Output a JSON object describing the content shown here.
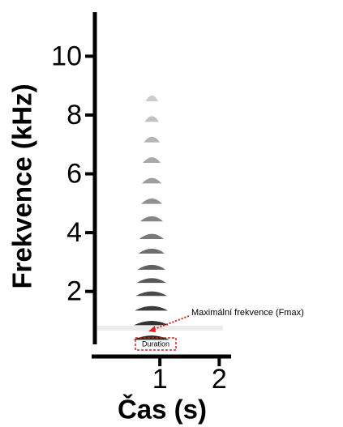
{
  "chart_data": {
    "type": "spectrogram",
    "ylabel": "Frekvence (kHz)",
    "xlabel": "Čas (s)",
    "ylim": [
      0.2,
      11.5
    ],
    "yticks": [
      2,
      4,
      6,
      8,
      10
    ],
    "xlim": [
      -0.15,
      2.2
    ],
    "xticks": [
      1,
      2
    ],
    "time_range": [
      0.6,
      1.25
    ],
    "harmonics": [
      0.45,
      0.95,
      1.45,
      1.95,
      2.4,
      2.85,
      3.4,
      3.9,
      4.5,
      5.1,
      5.8,
      6.5,
      7.2,
      7.9,
      8.6
    ],
    "color": "#000000",
    "annotations": [
      "Maximální frekvence (Fmax)",
      "Duration"
    ],
    "annotation_color": "#e0201b"
  }
}
